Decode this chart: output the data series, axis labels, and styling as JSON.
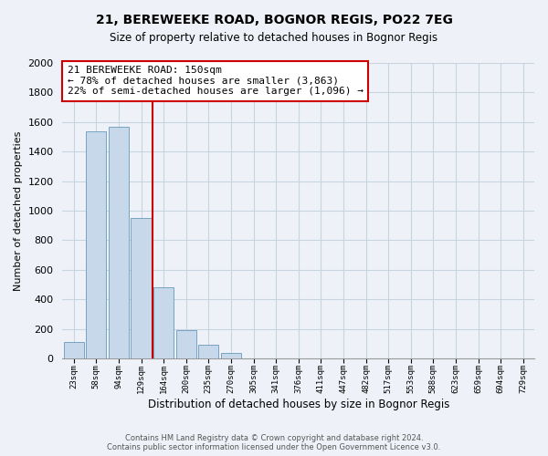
{
  "title": "21, BEREWEEKE ROAD, BOGNOR REGIS, PO22 7EG",
  "subtitle": "Size of property relative to detached houses in Bognor Regis",
  "xlabel": "Distribution of detached houses by size in Bognor Regis",
  "ylabel": "Number of detached properties",
  "bin_labels": [
    "23sqm",
    "58sqm",
    "94sqm",
    "129sqm",
    "164sqm",
    "200sqm",
    "235sqm",
    "270sqm",
    "305sqm",
    "341sqm",
    "376sqm",
    "411sqm",
    "447sqm",
    "482sqm",
    "517sqm",
    "553sqm",
    "588sqm",
    "623sqm",
    "659sqm",
    "694sqm",
    "729sqm"
  ],
  "bar_values": [
    110,
    1540,
    1570,
    950,
    480,
    190,
    95,
    35,
    0,
    0,
    0,
    0,
    0,
    0,
    0,
    0,
    0,
    0,
    0,
    0,
    0
  ],
  "bar_color": "#c8d8eb",
  "bar_edge_color": "#6699bb",
  "property_line_color": "#cc0000",
  "annotation_title": "21 BEREWEEKE ROAD: 150sqm",
  "annotation_line1": "← 78% of detached houses are smaller (3,863)",
  "annotation_line2": "22% of semi-detached houses are larger (1,096) →",
  "annotation_box_color": "#ffffff",
  "annotation_box_edge": "#cc0000",
  "ylim": [
    0,
    2000
  ],
  "yticks": [
    0,
    200,
    400,
    600,
    800,
    1000,
    1200,
    1400,
    1600,
    1800,
    2000
  ],
  "grid_color": "#c8d4e0",
  "footer_line1": "Contains HM Land Registry data © Crown copyright and database right 2024.",
  "footer_line2": "Contains public sector information licensed under the Open Government Licence v3.0.",
  "background_color": "#eef2f8"
}
